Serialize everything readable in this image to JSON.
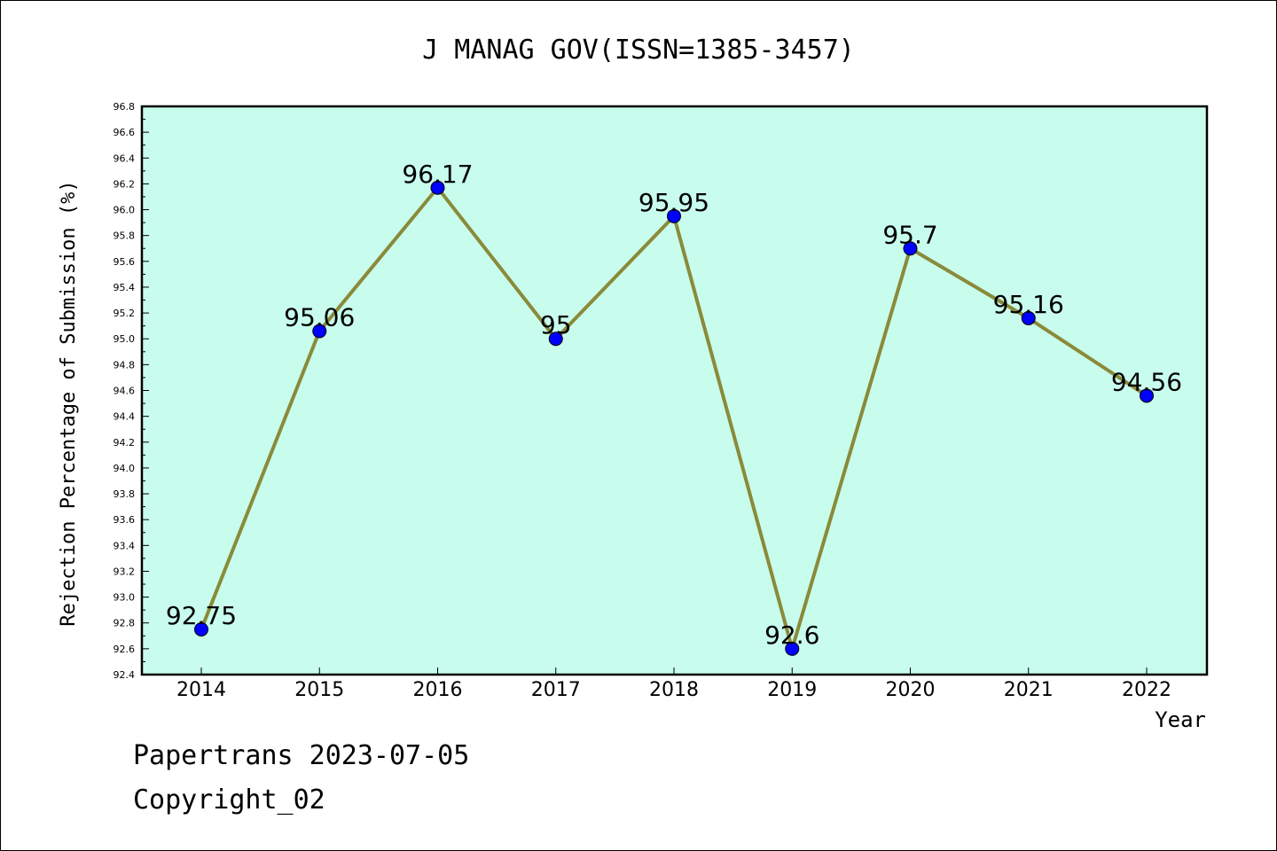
{
  "chart_data": {
    "type": "line",
    "title": "J MANAG GOV(ISSN=1385-3457)",
    "xlabel": "Year",
    "ylabel": "Rejection Percentage of Submission (%)",
    "categories": [
      "2014",
      "2015",
      "2016",
      "2017",
      "2018",
      "2019",
      "2020",
      "2021",
      "2022"
    ],
    "values": [
      92.75,
      95.06,
      96.17,
      95,
      95.95,
      92.6,
      95.7,
      95.16,
      94.56
    ],
    "data_labels": [
      "92.75",
      "95.06",
      "96.17",
      "95",
      "95.95",
      "92.6",
      "95.7",
      "95.16",
      "94.56"
    ],
    "ylim": [
      92.4,
      96.8
    ],
    "yticks": [
      "92.4",
      "92.6",
      "92.8",
      "93.0",
      "93.2",
      "93.4",
      "93.6",
      "93.8",
      "94.0",
      "94.2",
      "94.4",
      "94.6",
      "94.8",
      "95.0",
      "95.2",
      "95.4",
      "95.6",
      "95.8",
      "96.0",
      "96.2",
      "96.4",
      "96.6",
      "96.8"
    ],
    "grid": false,
    "legend": "none",
    "colors": {
      "plot_background": "#c8fcec",
      "line": "#8a8a3a",
      "marker": "#0000ff"
    }
  },
  "footer": {
    "line1": "Papertrans 2023-07-05",
    "line2": "Copyright_02"
  }
}
